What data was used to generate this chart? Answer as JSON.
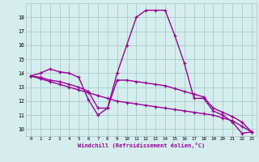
{
  "xlabel": "Windchill (Refroidissement éolien,°C)",
  "hours": [
    0,
    1,
    2,
    3,
    4,
    5,
    6,
    7,
    8,
    9,
    10,
    11,
    12,
    13,
    14,
    15,
    16,
    17,
    18,
    19,
    20,
    21,
    22,
    23
  ],
  "line1": [
    13.8,
    14.0,
    14.3,
    14.1,
    14.0,
    13.7,
    12.1,
    11.0,
    11.5,
    14.0,
    16.0,
    18.0,
    18.5,
    18.5,
    18.5,
    16.7,
    14.7,
    12.2,
    12.2,
    11.3,
    11.0,
    10.5,
    9.7,
    9.8
  ],
  "line2": [
    13.8,
    13.6,
    13.4,
    13.2,
    13.0,
    12.8,
    12.6,
    12.4,
    12.2,
    12.0,
    11.9,
    11.8,
    11.7,
    11.6,
    11.5,
    11.4,
    11.3,
    11.2,
    11.1,
    11.0,
    10.8,
    10.6,
    10.2,
    9.8
  ],
  "line3": [
    13.8,
    13.7,
    13.5,
    13.4,
    13.2,
    13.0,
    12.7,
    11.5,
    11.5,
    13.5,
    13.5,
    13.4,
    13.3,
    13.2,
    13.1,
    12.9,
    12.7,
    12.5,
    12.3,
    11.5,
    11.2,
    10.9,
    10.5,
    9.8
  ],
  "line_color": "#990099",
  "bg_color": "#d4eeed",
  "grid_color": "#aacbca",
  "ylim": [
    9.5,
    19.0
  ],
  "yticks": [
    10,
    11,
    12,
    13,
    14,
    15,
    16,
    17,
    18
  ],
  "xlim": [
    -0.5,
    23.5
  ],
  "marker": "+",
  "markersize": 3,
  "linewidth": 1.0
}
